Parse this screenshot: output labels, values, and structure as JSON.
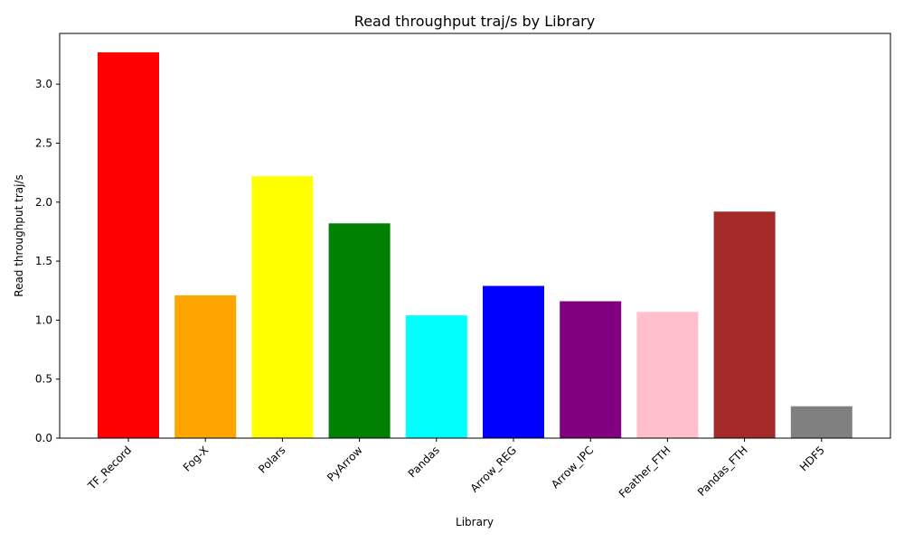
{
  "chart_data": {
    "type": "bar",
    "title": "Read throughput traj/s by Library",
    "xlabel": "Library",
    "ylabel": "Read throughput traj/s",
    "categories": [
      "TF_Record",
      "Fog-X",
      "Polars",
      "PyArrow",
      "Pandas",
      "Arrow_REG",
      "Arrow_IPC",
      "Feather_FTH",
      "Pandas_FTH",
      "HDF5"
    ],
    "values": [
      3.27,
      1.21,
      2.22,
      1.82,
      1.04,
      1.29,
      1.16,
      1.07,
      1.92,
      0.27
    ],
    "colors": [
      "#ff0000",
      "#ffa500",
      "#ffff00",
      "#008000",
      "#00ffff",
      "#0000ff",
      "#800080",
      "#ffc0cb",
      "#a52a2a",
      "#808080"
    ],
    "yticks": [
      "0.0",
      "0.5",
      "1.0",
      "1.5",
      "2.0",
      "2.5",
      "3.0"
    ],
    "ylim": [
      0,
      3.43
    ],
    "grid": false,
    "legend": false
  }
}
